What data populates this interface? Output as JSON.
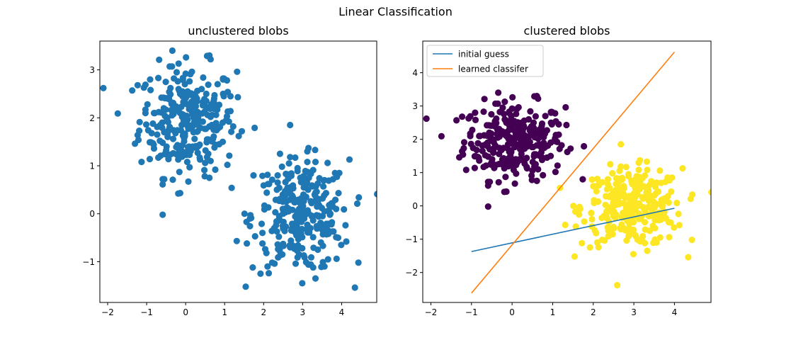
{
  "figure": {
    "suptitle": "Linear Classification"
  },
  "chart_data": [
    {
      "type": "scatter",
      "title": "unclustered blobs",
      "xlabel": "",
      "ylabel": "",
      "xlim": [
        -2.2,
        4.9
      ],
      "ylim": [
        -1.85,
        3.6
      ],
      "xticks": [
        -2,
        -1,
        0,
        1,
        2,
        3,
        4
      ],
      "yticks": [
        -1,
        0,
        1,
        2,
        3
      ],
      "grid": false,
      "series": [
        {
          "color": "#1f77b4",
          "points": []
        }
      ]
    },
    {
      "type": "scatter",
      "title": "clustered blobs",
      "xlabel": "",
      "ylabel": "",
      "xlim": [
        -2.2,
        4.9
      ],
      "ylim": [
        -2.9,
        4.95
      ],
      "xticks": [
        -2,
        -1,
        0,
        1,
        2,
        3,
        4
      ],
      "yticks": [
        -2,
        -1,
        0,
        1,
        2,
        3,
        4
      ],
      "grid": false,
      "legend_position": "top-left",
      "series": [
        {
          "color": "#440154",
          "points": []
        },
        {
          "color": "#fde725",
          "points": []
        }
      ],
      "lines": [
        {
          "name": "initial guess",
          "color": "#1f77b4",
          "x": [
            -1,
            4
          ],
          "y": [
            -1.37,
            -0.07
          ]
        },
        {
          "name": "learned classifer",
          "color": "#ff7f0e",
          "x": [
            -1,
            4
          ],
          "y": [
            -2.62,
            4.62
          ]
        }
      ]
    }
  ]
}
